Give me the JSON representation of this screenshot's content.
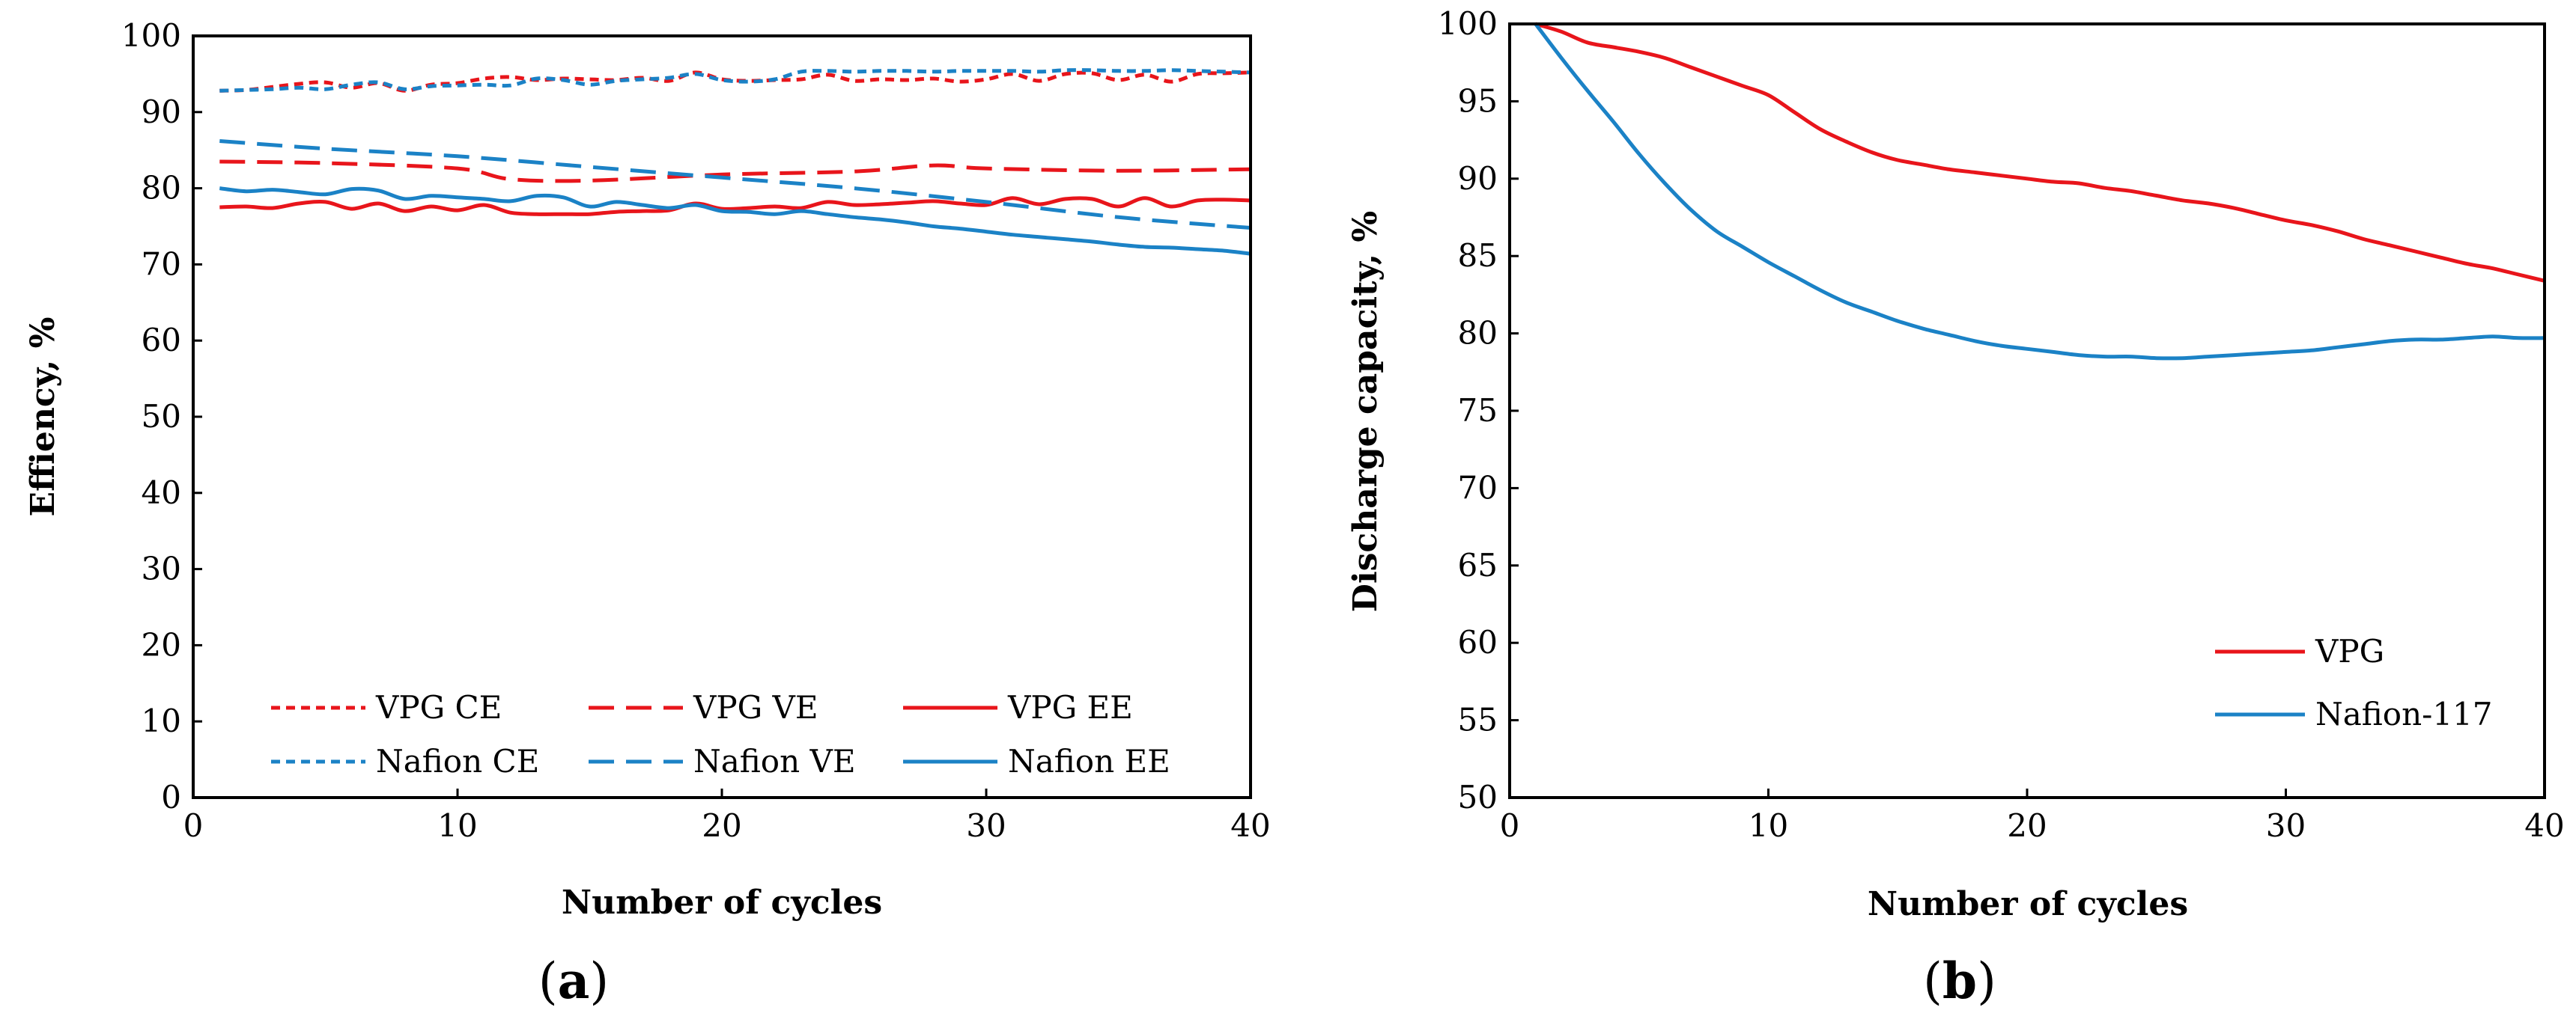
{
  "chart_data": [
    {
      "type": "line",
      "panel_label": "a",
      "title": "",
      "xlabel": "Number of cycles",
      "ylabel": "Effiency, %",
      "xlim": [
        0,
        40
      ],
      "ylim": [
        0,
        100
      ],
      "xticks": [
        0,
        10,
        20,
        30,
        40
      ],
      "yticks": [
        0,
        10,
        20,
        30,
        40,
        50,
        60,
        70,
        80,
        90,
        100
      ],
      "grid": false,
      "legend_position": "bottom",
      "series": [
        {
          "name": "VPG CE",
          "color": "#e8151b",
          "dash": "short",
          "x": [
            1,
            2,
            3,
            4,
            5,
            6,
            7,
            8,
            9,
            10,
            11,
            12,
            13,
            14,
            15,
            16,
            17,
            18,
            19,
            20,
            21,
            22,
            23,
            24,
            25,
            26,
            27,
            28,
            29,
            30,
            31,
            32,
            33,
            34,
            35,
            36,
            37,
            38,
            39,
            40
          ],
          "y": [
            92.8,
            92.9,
            93.3,
            93.7,
            93.9,
            93.2,
            93.8,
            92.8,
            93.6,
            93.8,
            94.4,
            94.6,
            94.2,
            94.4,
            94.3,
            94.2,
            94.5,
            94.1,
            95.2,
            94.3,
            94.1,
            94.2,
            94.3,
            94.9,
            94.1,
            94.3,
            94.2,
            94.4,
            94.0,
            94.3,
            95.0,
            94.1,
            95.0,
            95.1,
            94.2,
            94.9,
            94.0,
            95.0,
            95.1,
            95.2
          ]
        },
        {
          "name": "VPG VE",
          "color": "#e8151b",
          "dash": "long",
          "x": [
            1,
            5,
            10,
            12,
            15,
            20,
            25,
            28,
            30,
            35,
            40
          ],
          "y": [
            83.5,
            83.3,
            82.6,
            81.2,
            81.0,
            81.8,
            82.2,
            83.0,
            82.6,
            82.3,
            82.5
          ]
        },
        {
          "name": "VPG EE",
          "color": "#e8151b",
          "dash": "solid",
          "x": [
            1,
            2,
            3,
            4,
            5,
            6,
            7,
            8,
            9,
            10,
            11,
            12,
            13,
            14,
            15,
            16,
            17,
            18,
            19,
            20,
            21,
            22,
            23,
            24,
            25,
            26,
            27,
            28,
            29,
            30,
            31,
            32,
            33,
            34,
            35,
            36,
            37,
            38,
            39,
            40
          ],
          "y": [
            77.5,
            77.6,
            77.4,
            78.0,
            78.2,
            77.3,
            78.0,
            77.0,
            77.6,
            77.1,
            77.8,
            76.8,
            76.6,
            76.6,
            76.6,
            76.9,
            77.0,
            77.1,
            78.0,
            77.3,
            77.4,
            77.6,
            77.4,
            78.2,
            77.8,
            77.9,
            78.1,
            78.3,
            78.0,
            77.8,
            78.7,
            77.9,
            78.6,
            78.6,
            77.6,
            78.7,
            77.6,
            78.4,
            78.5,
            78.4
          ]
        },
        {
          "name": "Nafion CE",
          "color": "#1b82c6",
          "dash": "short",
          "x": [
            1,
            2,
            3,
            4,
            5,
            6,
            7,
            8,
            9,
            10,
            11,
            12,
            13,
            14,
            15,
            16,
            17,
            18,
            19,
            20,
            21,
            22,
            23,
            24,
            25,
            26,
            27,
            28,
            29,
            30,
            31,
            32,
            33,
            34,
            35,
            36,
            37,
            38,
            39,
            40
          ],
          "y": [
            92.8,
            92.9,
            93.0,
            93.2,
            93.0,
            93.6,
            93.9,
            93.0,
            93.4,
            93.5,
            93.6,
            93.5,
            94.4,
            94.2,
            93.6,
            94.1,
            94.3,
            94.5,
            95.0,
            94.2,
            94.0,
            94.3,
            95.3,
            95.4,
            95.3,
            95.4,
            95.4,
            95.3,
            95.4,
            95.4,
            95.4,
            95.3,
            95.5,
            95.5,
            95.4,
            95.4,
            95.5,
            95.4,
            95.3,
            95.2
          ]
        },
        {
          "name": "Nafion VE",
          "color": "#1b82c6",
          "dash": "long",
          "x": [
            1,
            5,
            10,
            15,
            20,
            25,
            30,
            35,
            40
          ],
          "y": [
            86.2,
            85.2,
            84.2,
            82.8,
            81.4,
            80.0,
            78.2,
            76.2,
            74.8
          ]
        },
        {
          "name": "Nafion EE",
          "color": "#1b82c6",
          "dash": "solid",
          "x": [
            1,
            2,
            3,
            4,
            5,
            6,
            7,
            8,
            9,
            10,
            11,
            12,
            13,
            14,
            15,
            16,
            17,
            18,
            19,
            20,
            21,
            22,
            23,
            24,
            25,
            26,
            27,
            28,
            29,
            30,
            31,
            32,
            33,
            34,
            35,
            36,
            37,
            38,
            39,
            40
          ],
          "y": [
            80.0,
            79.6,
            79.8,
            79.5,
            79.2,
            79.9,
            79.7,
            78.6,
            79.0,
            78.8,
            78.6,
            78.3,
            79.0,
            78.8,
            77.6,
            78.2,
            77.8,
            77.4,
            77.8,
            77.0,
            76.9,
            76.6,
            77.0,
            76.6,
            76.2,
            75.9,
            75.5,
            75.0,
            74.7,
            74.3,
            73.9,
            73.6,
            73.3,
            73.0,
            72.6,
            72.3,
            72.2,
            72.0,
            71.8,
            71.4
          ]
        }
      ]
    },
    {
      "type": "line",
      "panel_label": "b",
      "title": "",
      "xlabel": "Number of cycles",
      "ylabel": "Discharge capacity, %",
      "xlim": [
        0,
        40
      ],
      "ylim": [
        50,
        100
      ],
      "xticks": [
        0,
        10,
        20,
        30,
        40
      ],
      "yticks": [
        50,
        55,
        60,
        65,
        70,
        75,
        80,
        85,
        90,
        95,
        100
      ],
      "grid": false,
      "legend_position": "bottom-right",
      "series": [
        {
          "name": "VPG",
          "color": "#e8151b",
          "dash": "solid",
          "x": [
            1,
            2,
            3,
            4,
            5,
            6,
            7,
            8,
            9,
            10,
            11,
            12,
            13,
            14,
            15,
            16,
            17,
            18,
            19,
            20,
            21,
            22,
            23,
            24,
            25,
            26,
            27,
            28,
            29,
            30,
            31,
            32,
            33,
            34,
            35,
            36,
            37,
            38,
            39,
            40
          ],
          "y": [
            100,
            99.5,
            98.8,
            98.5,
            98.2,
            97.8,
            97.2,
            96.6,
            96.0,
            95.4,
            94.3,
            93.2,
            92.4,
            91.7,
            91.2,
            90.9,
            90.6,
            90.4,
            90.2,
            90.0,
            89.8,
            89.7,
            89.4,
            89.2,
            88.9,
            88.6,
            88.4,
            88.1,
            87.7,
            87.3,
            87.0,
            86.6,
            86.1,
            85.7,
            85.3,
            84.9,
            84.5,
            84.2,
            83.8,
            83.4
          ]
        },
        {
          "name": "Nafion-117",
          "color": "#1b82c6",
          "dash": "solid",
          "x": [
            1,
            2,
            3,
            4,
            5,
            6,
            7,
            8,
            9,
            10,
            11,
            12,
            13,
            14,
            15,
            16,
            17,
            18,
            19,
            20,
            21,
            22,
            23,
            24,
            25,
            26,
            27,
            28,
            29,
            30,
            31,
            32,
            33,
            34,
            35,
            36,
            37,
            38,
            39,
            40
          ],
          "y": [
            100,
            97.8,
            95.7,
            93.7,
            91.6,
            89.7,
            88.0,
            86.6,
            85.6,
            84.6,
            83.7,
            82.8,
            82.0,
            81.4,
            80.8,
            80.3,
            79.9,
            79.5,
            79.2,
            79.0,
            78.8,
            78.6,
            78.5,
            78.5,
            78.4,
            78.4,
            78.5,
            78.6,
            78.7,
            78.8,
            78.9,
            79.1,
            79.3,
            79.5,
            79.6,
            79.6,
            79.7,
            79.8,
            79.7,
            79.7
          ]
        }
      ]
    }
  ]
}
